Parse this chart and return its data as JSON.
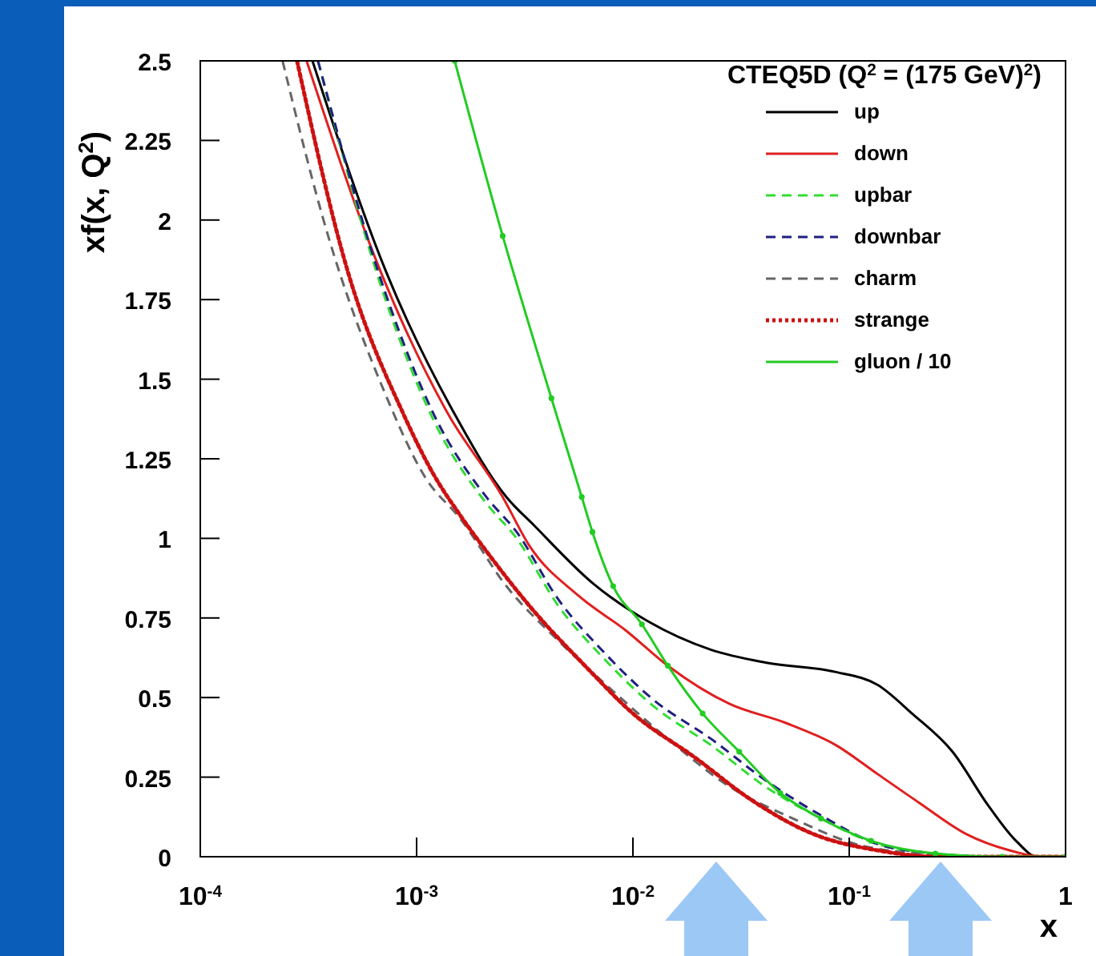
{
  "chart_data": {
    "type": "line",
    "title": "CTEQ5D (Q$^{2}$ = (175 GeV)$^{2}$)",
    "xlabel": "x",
    "ylabel": "xf(x, Q$^{2}$)",
    "log": "x",
    "legend": "top right",
    "xlim": [
      0.0001,
      1
    ],
    "ylim": [
      0,
      2.5
    ],
    "xticks": [
      {
        "value": 0.0001,
        "label": "10$^{-4}$"
      },
      {
        "value": 0.001,
        "label": "10$^{-3}$"
      },
      {
        "value": 0.01,
        "label": "10$^{-2}$"
      },
      {
        "value": 0.1,
        "label": "10$^{-1}$"
      },
      1
    ],
    "yticks": [
      0,
      0.25,
      0.5,
      0.75,
      1,
      1.25,
      1.5,
      1.75,
      2,
      2.25,
      2.5
    ],
    "series": [
      {
        "name": "up",
        "color": "#000000",
        "line_style": "solid",
        "x": [
          0.00033,
          0.00072,
          0.0015,
          0.0026,
          0.0035,
          0.0065,
          0.0117,
          0.023,
          0.041,
          0.087,
          0.135,
          0.195,
          0.3,
          0.44,
          0.59,
          0.74,
          1
        ],
        "values": [
          2.5,
          1.84,
          1.39,
          1.13,
          1.04,
          0.86,
          0.74,
          0.65,
          0.61,
          0.58,
          0.54,
          0.45,
          0.33,
          0.16,
          0.05,
          0,
          0
        ]
      },
      {
        "name": "down",
        "color": "#e02020",
        "line_style": "solid",
        "x": [
          0.00031,
          0.00068,
          0.0014,
          0.0025,
          0.0033,
          0.0056,
          0.0093,
          0.0145,
          0.028,
          0.051,
          0.087,
          0.135,
          0.21,
          0.35,
          0.55,
          0.79,
          1
        ],
        "values": [
          2.5,
          1.84,
          1.39,
          1.13,
          0.98,
          0.82,
          0.71,
          0.6,
          0.48,
          0.42,
          0.35,
          0.26,
          0.17,
          0.07,
          0.02,
          0,
          0
        ]
      },
      {
        "name": "upbar",
        "color": "#33dd33",
        "line_style": "dashed",
        "x": [
          0.00035,
          0.00071,
          0.0012,
          0.0021,
          0.0029,
          0.0045,
          0.0074,
          0.0126,
          0.023,
          0.041,
          0.074,
          0.135,
          0.25,
          0.44,
          1
        ],
        "values": [
          2.5,
          1.76,
          1.37,
          1.11,
          1.0,
          0.79,
          0.62,
          0.47,
          0.35,
          0.22,
          0.12,
          0.04,
          0.01,
          0,
          0
        ]
      },
      {
        "name": "downbar",
        "color": "#202080",
        "line_style": "dashed",
        "x": [
          0.00035,
          0.00071,
          0.0012,
          0.0021,
          0.0029,
          0.0045,
          0.0074,
          0.0126,
          0.023,
          0.041,
          0.074,
          0.135,
          0.25,
          0.44,
          1
        ],
        "values": [
          2.5,
          1.78,
          1.39,
          1.13,
          1.02,
          0.81,
          0.64,
          0.49,
          0.37,
          0.24,
          0.13,
          0.04,
          0.01,
          0,
          0
        ]
      },
      {
        "name": "charm",
        "color": "#666666",
        "line_style": "dashed",
        "x": [
          0.00024,
          0.00039,
          0.00071,
          0.0011,
          0.0016,
          0.0026,
          0.0045,
          0.0081,
          0.0145,
          0.028,
          0.055,
          0.107,
          0.21,
          0.44,
          1
        ],
        "values": [
          2.5,
          1.95,
          1.46,
          1.19,
          1.06,
          0.85,
          0.68,
          0.52,
          0.37,
          0.22,
          0.12,
          0.04,
          0.01,
          0,
          0
        ]
      },
      {
        "name": "strange",
        "color": "#cc1111",
        "line_style": "dotted",
        "x": [
          0.00028,
          0.00048,
          0.00087,
          0.0012,
          0.0016,
          0.0021,
          0.0035,
          0.006,
          0.01,
          0.0195,
          0.035,
          0.069,
          0.135,
          0.26,
          1
        ],
        "values": [
          2.5,
          1.84,
          1.39,
          1.2,
          1.07,
          0.96,
          0.77,
          0.6,
          0.45,
          0.31,
          0.18,
          0.07,
          0.02,
          0,
          0
        ]
      },
      {
        "name": "gluon / 10",
        "color": "#22cc22",
        "line_style": "solid",
        "marker": "circle",
        "x": [
          0.0015,
          0.0025,
          0.0042,
          0.0058,
          0.0065,
          0.0081,
          0.011,
          0.0145,
          0.021,
          0.031,
          0.048,
          0.074,
          0.126,
          0.25,
          0.51,
          1
        ],
        "values": [
          2.5,
          1.95,
          1.44,
          1.13,
          1.02,
          0.85,
          0.73,
          0.6,
          0.45,
          0.33,
          0.2,
          0.12,
          0.05,
          0.01,
          0,
          0
        ]
      }
    ]
  }
}
